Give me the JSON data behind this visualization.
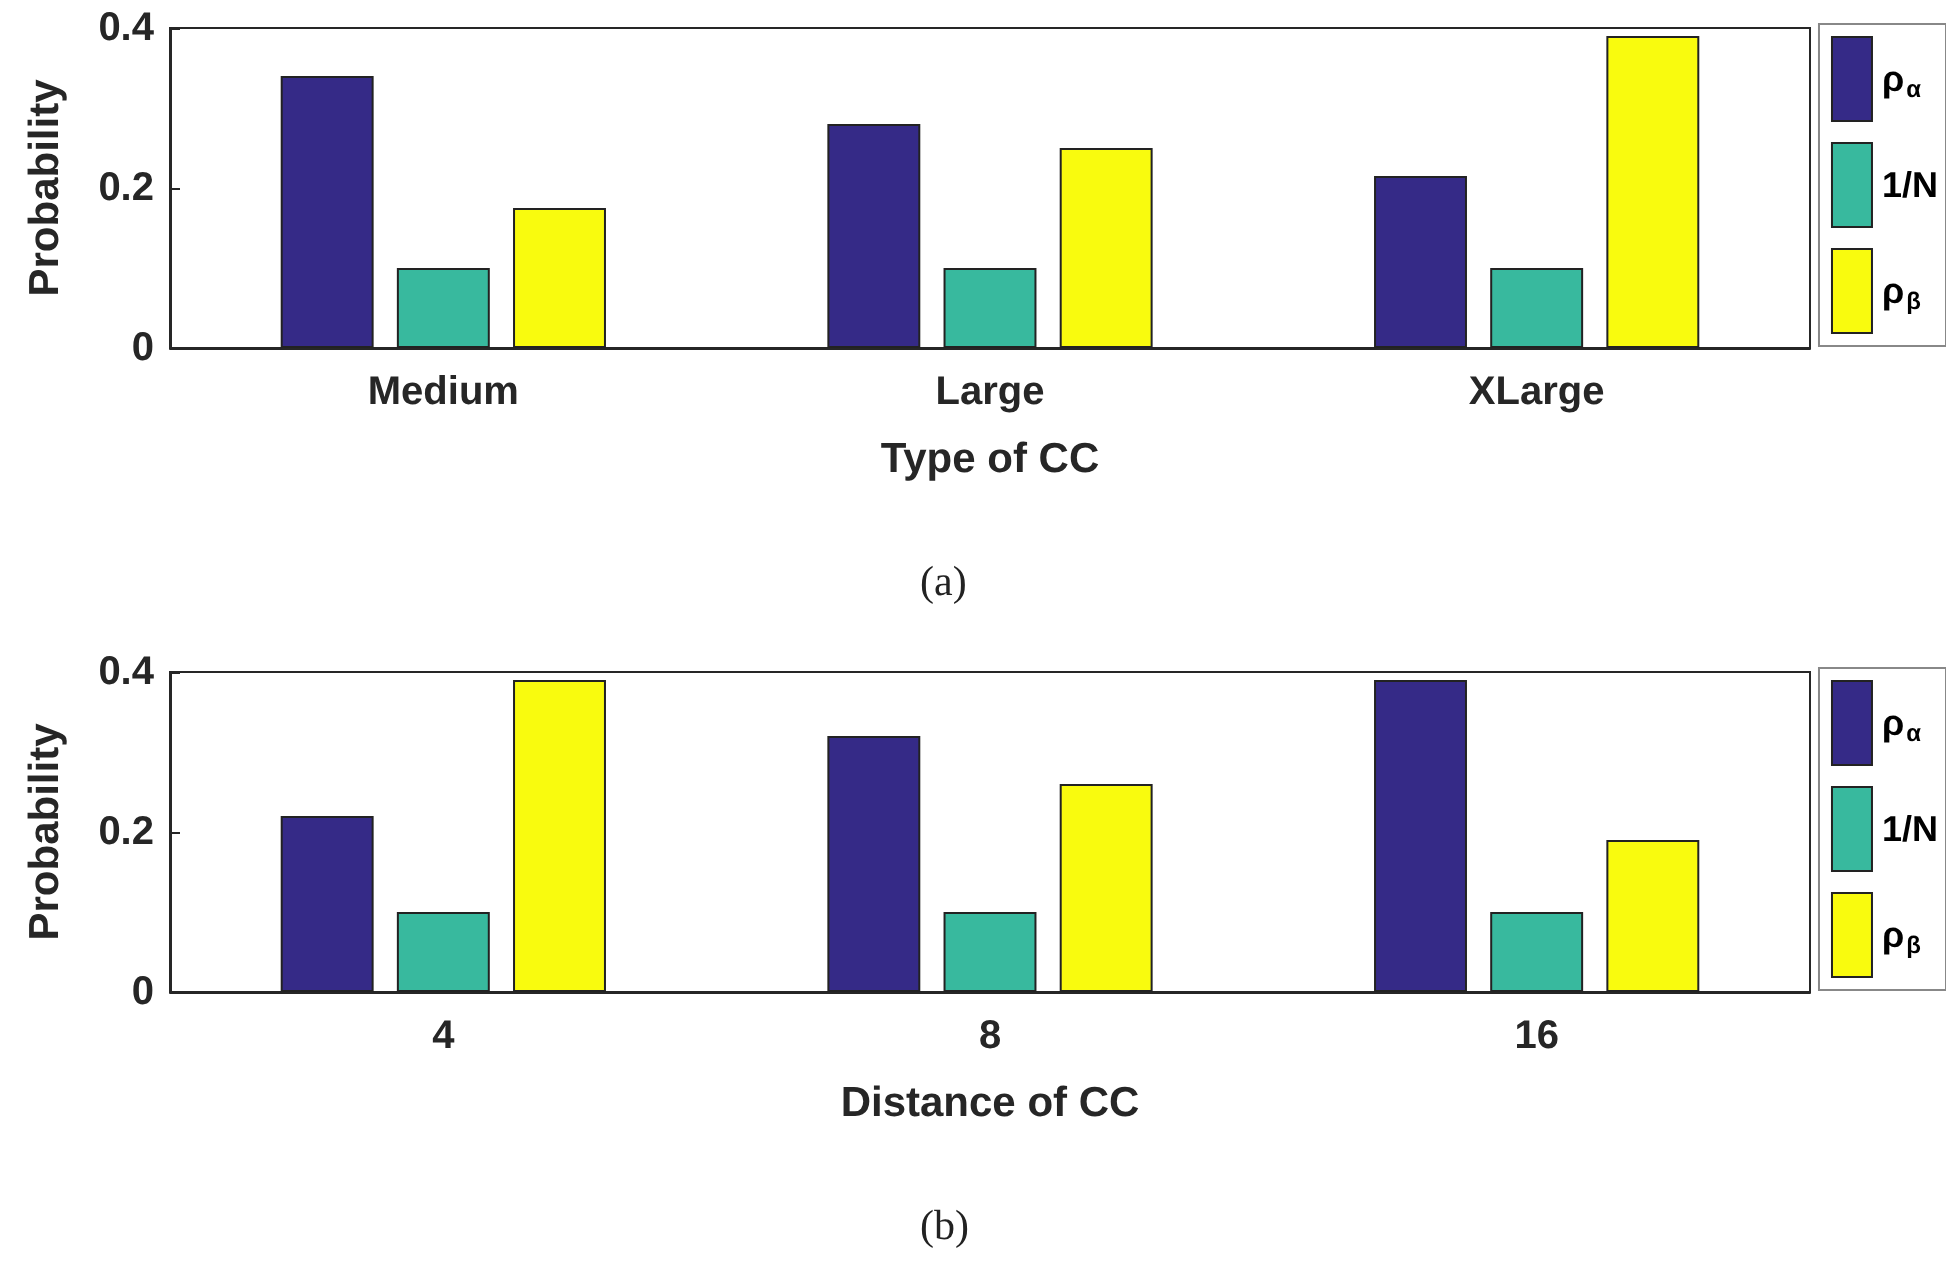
{
  "chart_data": [
    {
      "type": "bar",
      "xlabel": "Type of CC",
      "ylabel": "Probability",
      "categories": [
        "Medium",
        "Large",
        "XLarge"
      ],
      "series": [
        {
          "name": "ρ$_{α}$",
          "color": "#352a87",
          "values": [
            0.34,
            0.28,
            0.215
          ]
        },
        {
          "name": "1/N",
          "color": "#38b99e",
          "values": [
            0.1,
            0.1,
            0.1
          ]
        },
        {
          "name": "ρ$_{β}$",
          "color": "#f9fb0e",
          "values": [
            0.175,
            0.25,
            0.39
          ]
        }
      ],
      "ylim": [
        0,
        0.4
      ],
      "yticks": [
        0,
        0.2,
        0.4
      ],
      "grid": false,
      "legend": "right",
      "annotations": [
        "(a)"
      ]
    },
    {
      "type": "bar",
      "xlabel": "Distance of CC",
      "ylabel": "Probability",
      "categories": [
        "4",
        "8",
        "16"
      ],
      "series": [
        {
          "name": "ρ$_{α}$",
          "color": "#352a87",
          "values": [
            0.22,
            0.32,
            0.39
          ]
        },
        {
          "name": "1/N",
          "color": "#38b99e",
          "values": [
            0.1,
            0.1,
            0.1
          ]
        },
        {
          "name": "ρ$_{β}$",
          "color": "#f9fb0e",
          "values": [
            0.39,
            0.26,
            0.19
          ]
        }
      ],
      "ylim": [
        0,
        0.4
      ],
      "yticks": [
        0,
        0.2,
        0.4
      ],
      "grid": false,
      "legend": "right",
      "annotations": [
        "(b)"
      ]
    }
  ]
}
